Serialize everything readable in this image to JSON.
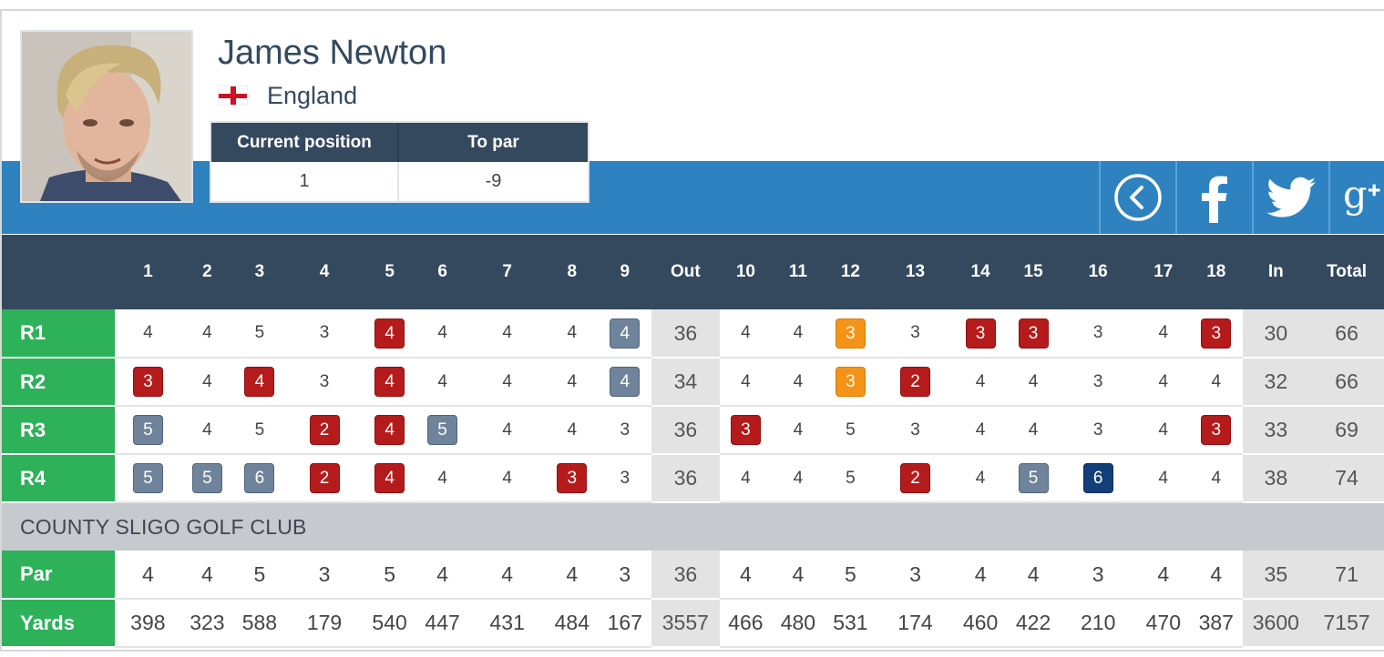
{
  "player": {
    "name": "James Newton",
    "country": "England",
    "flag_icon": "england-flag-icon"
  },
  "standing": {
    "position_label": "Current position",
    "to_par_label": "To par",
    "position": "1",
    "to_par": "-9"
  },
  "social": [
    {
      "name": "back-icon"
    },
    {
      "name": "facebook-icon"
    },
    {
      "name": "twitter-icon"
    },
    {
      "name": "google-plus-icon"
    }
  ],
  "colors": {
    "header_blue": "#2e82c0",
    "header_dark": "#34495e",
    "label_green": "#2db159",
    "birdie": "#b51b1b",
    "bogey": "#6f849a",
    "eagle": "#f39419",
    "double_bogey": "#123f79"
  },
  "scorecard": {
    "columns": [
      "",
      "1",
      "2",
      "3",
      "4",
      "5",
      "6",
      "7",
      "8",
      "9",
      "Out",
      "10",
      "11",
      "12",
      "13",
      "14",
      "15",
      "16",
      "17",
      "18",
      "In",
      "Total"
    ],
    "rounds": [
      {
        "label": "R1",
        "scores": [
          "4",
          "4",
          "5",
          "3",
          "4",
          "4",
          "4",
          "4",
          "4"
        ],
        "out": "36",
        "scores_back": [
          "4",
          "4",
          "3",
          "3",
          "3",
          "3",
          "3",
          "4",
          "3"
        ],
        "in": "30",
        "total": "66"
      },
      {
        "label": "R2",
        "scores": [
          "3",
          "4",
          "4",
          "3",
          "4",
          "4",
          "4",
          "4",
          "4"
        ],
        "out": "34",
        "scores_back": [
          "4",
          "4",
          "3",
          "2",
          "4",
          "4",
          "3",
          "4",
          "4"
        ],
        "in": "32",
        "total": "66"
      },
      {
        "label": "R3",
        "scores": [
          "5",
          "4",
          "5",
          "2",
          "4",
          "5",
          "4",
          "4",
          "3"
        ],
        "out": "36",
        "scores_back": [
          "3",
          "4",
          "5",
          "3",
          "4",
          "4",
          "3",
          "4",
          "3"
        ],
        "in": "33",
        "total": "69"
      },
      {
        "label": "R4",
        "scores": [
          "5",
          "5",
          "6",
          "2",
          "4",
          "4",
          "4",
          "3",
          "3"
        ],
        "out": "36",
        "scores_back": [
          "4",
          "4",
          "5",
          "2",
          "4",
          "5",
          "6",
          "4",
          "4"
        ],
        "in": "38",
        "total": "74"
      }
    ],
    "course_name": "COUNTY SLIGO GOLF CLUB",
    "par": {
      "label": "Par",
      "front": [
        "4",
        "4",
        "5",
        "3",
        "5",
        "4",
        "4",
        "4",
        "3"
      ],
      "out": "36",
      "back": [
        "4",
        "4",
        "5",
        "3",
        "4",
        "4",
        "3",
        "4",
        "4"
      ],
      "in": "35",
      "total": "71"
    },
    "yards": {
      "label": "Yards",
      "front": [
        "398",
        "323",
        "588",
        "179",
        "540",
        "447",
        "431",
        "484",
        "167"
      ],
      "out": "3557",
      "back": [
        "466",
        "480",
        "531",
        "174",
        "460",
        "422",
        "210",
        "470",
        "387"
      ],
      "in": "3600",
      "total": "7157"
    }
  }
}
